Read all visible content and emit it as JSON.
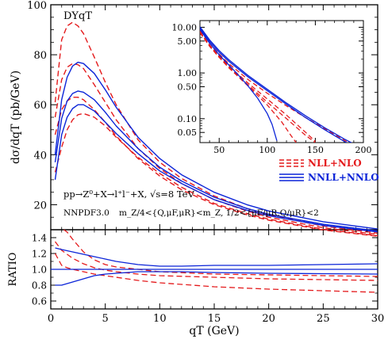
{
  "chart_data": [
    {
      "name": "main",
      "type": "line",
      "label": "DYqT",
      "xlabel": "qT (GeV)",
      "ylabel": "dσ/dqT (pb/GeV)",
      "xlim": [
        0,
        30
      ],
      "ylim": [
        10,
        100
      ],
      "xticks": [
        0,
        5,
        10,
        15,
        20,
        25,
        30
      ],
      "yticks": [
        20,
        40,
        60,
        80,
        100
      ],
      "process_text": "pp→Z⁰+X→l⁺l⁻+X,   √s=8 TeV",
      "pdf_label": "NNPDF3.0",
      "scale_text": "m_Z/4<{Q,μF,μR}<m_Z,  1/2<{μF/μR,Q/μR}<2",
      "legend": [
        {
          "label": "NLL+NLO",
          "color": "#e41a1c",
          "style": "dashed"
        },
        {
          "label": "NNLL+NNLO",
          "color": "#0b24d8",
          "style": "solid"
        }
      ],
      "series": [
        {
          "group": "NLL+NLO",
          "color": "#e41a1c",
          "dash": true,
          "x": [
            0.4,
            1,
            1.5,
            2,
            2.5,
            3,
            4,
            5,
            6,
            8,
            10,
            12,
            15,
            18,
            20,
            25,
            30
          ],
          "y": [
            61,
            86,
            91.5,
            93,
            91.5,
            88.5,
            79,
            69,
            60,
            46,
            37,
            30.5,
            23.5,
            18.5,
            16,
            11.5,
            8.6
          ]
        },
        {
          "group": "NLL+NLO",
          "color": "#e41a1c",
          "dash": true,
          "x": [
            0.4,
            1,
            1.5,
            2,
            2.5,
            3,
            4,
            5,
            6,
            8,
            10,
            12,
            15,
            18,
            20,
            25,
            30
          ],
          "y": [
            55,
            70,
            75,
            76.5,
            76,
            74.5,
            68,
            61,
            54,
            42.5,
            34.5,
            28.5,
            22,
            17.5,
            15,
            10.8,
            8.1
          ]
        },
        {
          "group": "NLL+NLO",
          "color": "#e41a1c",
          "dash": true,
          "x": [
            0.4,
            1,
            1.5,
            2,
            2.5,
            3,
            4,
            5,
            6,
            8,
            10,
            12,
            15,
            18,
            20,
            25,
            30
          ],
          "y": [
            48,
            58,
            61.5,
            63,
            63,
            62,
            58,
            53,
            47.5,
            38.5,
            31.5,
            26,
            20,
            16,
            13.8,
            9.9,
            7.4
          ]
        },
        {
          "group": "NLL+NLO",
          "color": "#e41a1c",
          "dash": true,
          "x": [
            0.4,
            1,
            1.5,
            2,
            2.5,
            3,
            4,
            5,
            6,
            8,
            10,
            12,
            15,
            18,
            20,
            25,
            30
          ],
          "y": [
            33,
            43,
            50,
            54,
            56,
            56.5,
            55,
            51.5,
            47,
            39,
            32.5,
            27,
            20.5,
            16.5,
            14.2,
            10.2,
            7.6
          ]
        },
        {
          "group": "NNLL+NNLO",
          "color": "#0b24d8",
          "dash": false,
          "x": [
            0.4,
            1,
            1.5,
            2,
            2.5,
            3,
            4,
            5,
            6,
            8,
            10,
            12,
            15,
            18,
            20,
            25,
            30
          ],
          "y": [
            40,
            62,
            71,
            75.5,
            77,
            76.5,
            72.5,
            66,
            59,
            47,
            38.5,
            32,
            25,
            20,
            17.5,
            13.2,
            10.3
          ]
        },
        {
          "group": "NNLL+NNLO",
          "color": "#0b24d8",
          "dash": false,
          "x": [
            0.4,
            1,
            1.5,
            2,
            2.5,
            3,
            4,
            5,
            6,
            8,
            10,
            12,
            15,
            18,
            20,
            25,
            30
          ],
          "y": [
            37,
            54.5,
            61.5,
            64.5,
            65.5,
            65,
            62,
            57,
            51.5,
            42.5,
            35,
            29.5,
            23,
            18.5,
            16.2,
            12.2,
            9.5
          ]
        },
        {
          "group": "NNLL+NNLO",
          "color": "#0b24d8",
          "dash": false,
          "x": [
            0.4,
            1,
            1.5,
            2,
            2.5,
            3,
            4,
            5,
            6,
            8,
            10,
            12,
            15,
            18,
            20,
            25,
            30
          ],
          "y": [
            30,
            48,
            55,
            58.5,
            60,
            60,
            57.5,
            53,
            48.5,
            40.5,
            33.5,
            28.5,
            22,
            17.8,
            15.6,
            11.7,
            9.1
          ]
        }
      ]
    },
    {
      "name": "inset",
      "type": "line",
      "log_y": true,
      "xlim": [
        30,
        200
      ],
      "ylim": [
        0.03,
        14
      ],
      "xticks": [
        50,
        100,
        150,
        200
      ],
      "yticks": [
        0.05,
        0.1,
        0.5,
        1.0,
        5.0,
        10.0
      ],
      "ytick_labels": [
        "0.05",
        "0.10",
        "0.50",
        "1.00",
        "5.00",
        "10.00"
      ],
      "series": [
        {
          "color": "#e41a1c",
          "dash": true,
          "x": [
            30,
            40,
            50,
            60,
            80,
            100,
            120,
            140,
            160,
            180,
            190
          ],
          "y": [
            8.5,
            4.5,
            2.6,
            1.6,
            0.72,
            0.36,
            0.19,
            0.105,
            0.06,
            0.034,
            0.026
          ]
        },
        {
          "color": "#e41a1c",
          "dash": true,
          "x": [
            30,
            40,
            50,
            60,
            80,
            100,
            120,
            140,
            150
          ],
          "y": [
            8.0,
            4.1,
            2.35,
            1.42,
            0.6,
            0.27,
            0.12,
            0.05,
            0.032
          ]
        },
        {
          "color": "#e41a1c",
          "dash": true,
          "x": [
            30,
            40,
            50,
            60,
            80,
            100,
            115,
            125,
            130
          ],
          "y": [
            7.6,
            3.85,
            2.2,
            1.3,
            0.52,
            0.2,
            0.085,
            0.042,
            0.03
          ]
        },
        {
          "color": "#e41a1c",
          "dash": true,
          "x": [
            30,
            40,
            50,
            60,
            80,
            100,
            120,
            140,
            150
          ],
          "y": [
            7.8,
            4.0,
            2.25,
            1.35,
            0.55,
            0.23,
            0.1,
            0.043,
            0.03
          ]
        },
        {
          "color": "#0b24d8",
          "dash": false,
          "x": [
            30,
            40,
            50,
            60,
            80,
            100,
            120,
            140,
            160,
            180,
            190
          ],
          "y": [
            10.3,
            5.3,
            3.1,
            1.95,
            0.88,
            0.44,
            0.22,
            0.115,
            0.063,
            0.036,
            0.028
          ]
        },
        {
          "color": "#0b24d8",
          "dash": false,
          "x": [
            30,
            40,
            50,
            60,
            80,
            100,
            120,
            140,
            160,
            180,
            188
          ],
          "y": [
            9.5,
            4.9,
            2.85,
            1.8,
            0.82,
            0.41,
            0.205,
            0.105,
            0.057,
            0.032,
            0.026
          ]
        },
        {
          "color": "#0b24d8",
          "dash": false,
          "x": [
            30,
            40,
            50,
            60,
            70,
            80,
            90,
            100,
            105,
            110
          ],
          "y": [
            9.0,
            4.5,
            2.5,
            1.5,
            0.9,
            0.52,
            0.28,
            0.13,
            0.075,
            0.033
          ]
        }
      ]
    },
    {
      "name": "ratio",
      "type": "line",
      "ylabel": "RATIO",
      "xlim": [
        0,
        30
      ],
      "ylim": [
        0.5,
        1.5
      ],
      "xticks": [
        0,
        5,
        10,
        15,
        20,
        25,
        30
      ],
      "yticks": [
        0.6,
        0.8,
        1.0,
        1.2,
        1.4
      ],
      "ytick_labels": [
        "0.6",
        "0.8",
        "1.0",
        "1.2",
        "1.4"
      ],
      "series": [
        {
          "color": "#e41a1c",
          "dash": true,
          "x": [
            1.2,
            1.5,
            2,
            3,
            4,
            5,
            6,
            8,
            10,
            15,
            20,
            25,
            30
          ],
          "y": [
            1.5,
            1.47,
            1.38,
            1.22,
            1.12,
            1.06,
            1.03,
            1.0,
            0.97,
            0.94,
            0.93,
            0.92,
            0.91
          ]
        },
        {
          "color": "#e41a1c",
          "dash": true,
          "x": [
            0.4,
            1,
            1.5,
            2,
            3,
            4,
            5,
            6,
            8,
            10,
            15,
            20,
            25,
            30
          ],
          "y": [
            1.35,
            1.24,
            1.19,
            1.14,
            1.07,
            1.02,
            0.99,
            0.97,
            0.94,
            0.92,
            0.9,
            0.88,
            0.87,
            0.86
          ]
        },
        {
          "color": "#e41a1c",
          "dash": true,
          "x": [
            0.4,
            1,
            1.5,
            2,
            3,
            4,
            5,
            6,
            8,
            10,
            15,
            20,
            25,
            30
          ],
          "y": [
            1.2,
            1.05,
            1.02,
            1.0,
            0.97,
            0.94,
            0.92,
            0.9,
            0.86,
            0.83,
            0.78,
            0.75,
            0.73,
            0.71
          ]
        },
        {
          "color": "#0b24d8",
          "dash": false,
          "x": [
            0.4,
            1,
            2,
            3,
            4,
            5,
            6,
            8,
            10,
            12,
            15,
            20,
            25,
            30
          ],
          "y": [
            1.27,
            1.25,
            1.22,
            1.19,
            1.16,
            1.13,
            1.1,
            1.06,
            1.04,
            1.04,
            1.05,
            1.05,
            1.06,
            1.07
          ]
        },
        {
          "color": "#0b24d8",
          "dash": false,
          "x": [
            0,
            30
          ],
          "y": [
            1.0,
            1.0
          ]
        },
        {
          "color": "#0b24d8",
          "dash": false,
          "x": [
            0.4,
            1,
            2,
            3,
            4,
            5,
            6,
            8,
            10,
            12,
            15,
            20,
            25,
            30
          ],
          "y": [
            0.8,
            0.8,
            0.84,
            0.88,
            0.92,
            0.94,
            0.95,
            0.97,
            0.97,
            0.97,
            0.96,
            0.95,
            0.945,
            0.94
          ]
        }
      ]
    }
  ]
}
